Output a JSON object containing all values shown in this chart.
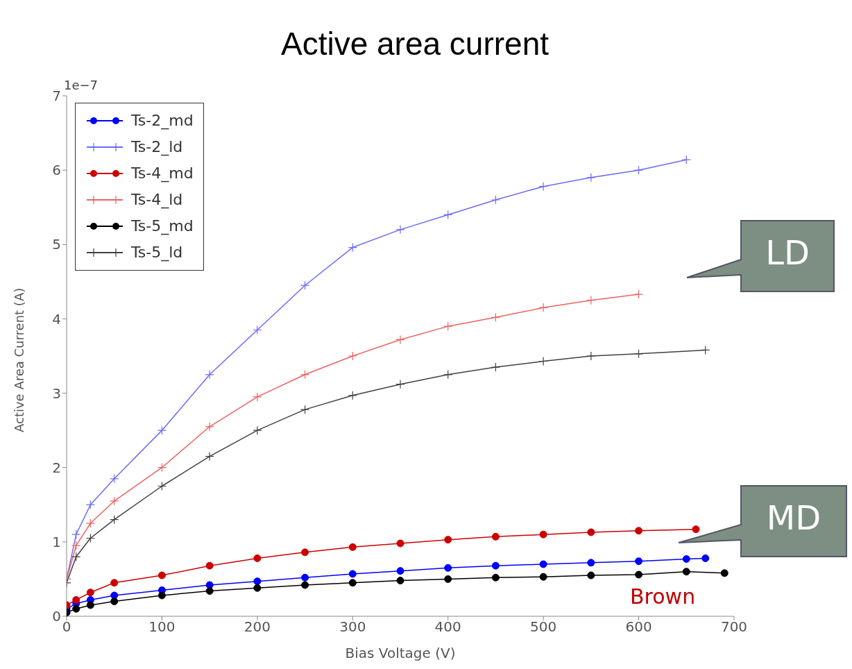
{
  "chart_data": {
    "type": "line",
    "title": "Active area current",
    "xlabel": "Bias Voltage (V)",
    "ylabel": "Active Area Current (A)",
    "xlim": [
      0,
      700
    ],
    "xticks": [
      0,
      100,
      200,
      300,
      400,
      500,
      600,
      700
    ],
    "ylim": [
      0,
      7
    ],
    "yticks": [
      0,
      1,
      2,
      3,
      4,
      5,
      6,
      7
    ],
    "grid": false,
    "legend": "top left",
    "line_style": "solid",
    "annotations": [
      "1e−7",
      "LD",
      "MD",
      "Brown"
    ],
    "series": [
      {
        "name": "Ts-2_md",
        "color": "#0000ff",
        "marker": "circle",
        "x": [
          0,
          10,
          25,
          50,
          100,
          150,
          200,
          250,
          300,
          350,
          400,
          450,
          500,
          550,
          600,
          650,
          670
        ],
        "values": [
          0.1,
          0.17,
          0.22,
          0.28,
          0.35,
          0.42,
          0.47,
          0.52,
          0.57,
          0.61,
          0.65,
          0.68,
          0.7,
          0.72,
          0.74,
          0.77,
          0.78
        ]
      },
      {
        "name": "Ts-2_ld",
        "color": "#6a6aff",
        "marker": "cross",
        "x": [
          0,
          10,
          25,
          50,
          100,
          150,
          200,
          250,
          300,
          350,
          400,
          450,
          500,
          550,
          600,
          650
        ],
        "values": [
          0.5,
          1.1,
          1.5,
          1.85,
          2.5,
          3.25,
          3.85,
          4.45,
          4.96,
          5.2,
          5.4,
          5.6,
          5.78,
          5.9,
          6.0,
          6.14
        ]
      },
      {
        "name": "Ts-4_md",
        "color": "#cc0000",
        "marker": "circle",
        "x": [
          0,
          10,
          25,
          50,
          100,
          150,
          200,
          250,
          300,
          350,
          400,
          450,
          500,
          550,
          600,
          660
        ],
        "values": [
          0.15,
          0.22,
          0.32,
          0.45,
          0.55,
          0.68,
          0.78,
          0.86,
          0.93,
          0.98,
          1.03,
          1.07,
          1.1,
          1.13,
          1.15,
          1.17
        ]
      },
      {
        "name": "Ts-4_ld",
        "color": "#f06060",
        "marker": "cross",
        "x": [
          0,
          10,
          25,
          50,
          100,
          150,
          200,
          250,
          300,
          350,
          400,
          450,
          500,
          550,
          600
        ],
        "values": [
          0.5,
          0.95,
          1.25,
          1.55,
          2.0,
          2.55,
          2.95,
          3.25,
          3.5,
          3.72,
          3.9,
          4.02,
          4.15,
          4.25,
          4.33
        ]
      },
      {
        "name": "Ts-5_md",
        "color": "#000000",
        "marker": "circle",
        "x": [
          0,
          10,
          25,
          50,
          100,
          150,
          200,
          250,
          300,
          350,
          400,
          450,
          500,
          550,
          600,
          650,
          690
        ],
        "values": [
          0.05,
          0.1,
          0.15,
          0.2,
          0.28,
          0.34,
          0.38,
          0.42,
          0.45,
          0.48,
          0.5,
          0.52,
          0.53,
          0.55,
          0.56,
          0.6,
          0.58
        ]
      },
      {
        "name": "Ts-5_ld",
        "color": "#404040",
        "marker": "cross",
        "x": [
          0,
          10,
          25,
          50,
          100,
          150,
          200,
          250,
          300,
          350,
          400,
          450,
          500,
          550,
          600,
          670
        ],
        "values": [
          0.45,
          0.8,
          1.05,
          1.3,
          1.75,
          2.15,
          2.5,
          2.78,
          2.97,
          3.12,
          3.25,
          3.35,
          3.43,
          3.5,
          3.53,
          3.58
        ]
      }
    ]
  }
}
